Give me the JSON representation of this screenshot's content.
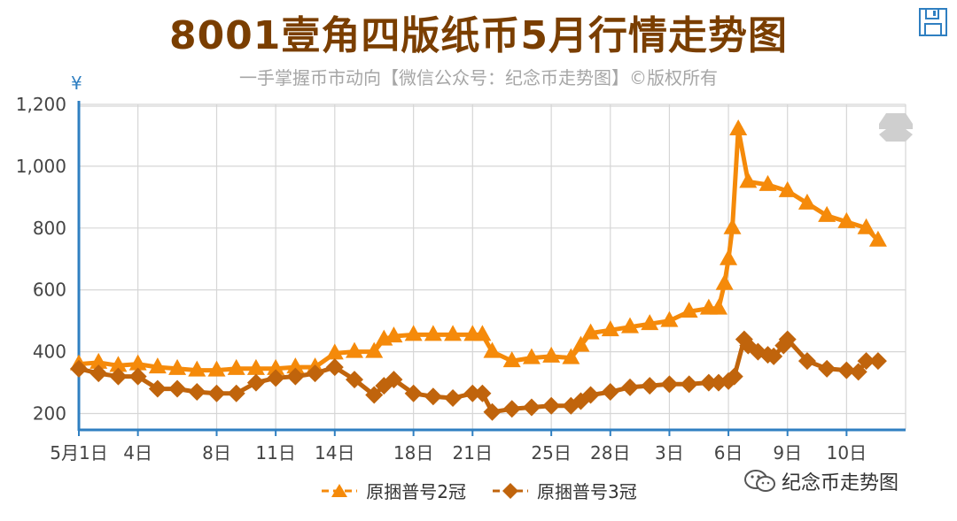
{
  "header": {
    "title": "8001壹角四版纸币5月行情走势图",
    "subtitle": "一手掌握币市动向【微信公众号：纪念币走势图】©版权所有"
  },
  "toolbar": {
    "save_icon": "save-icon"
  },
  "watermark": {
    "text": "纪念币走势图",
    "icon": "wechat-icon"
  },
  "colors": {
    "series1": "#f58a0a",
    "series2": "#c0640c",
    "axis": "#2f7fc1",
    "grid": "#d6d6d6",
    "title": "#7a3e00"
  },
  "chart_data": {
    "type": "line",
    "ylabel": "¥",
    "ylim": [
      150,
      1200
    ],
    "yticks": [
      200,
      400,
      600,
      800,
      1000,
      1200
    ],
    "ytick_labels": [
      "200",
      "400",
      "600",
      "800",
      "1,000",
      "1,200"
    ],
    "xlim": [
      0,
      42
    ],
    "xticks": [
      0,
      3,
      7,
      10,
      13,
      17,
      20,
      24,
      27,
      30,
      33,
      36,
      39
    ],
    "xtick_labels": [
      "5月1日",
      "4日",
      "8日",
      "11日",
      "14日",
      "18日",
      "21日",
      "25日",
      "28日",
      "3日",
      "6日",
      "9日",
      "10日"
    ],
    "grid": true,
    "legend_position": "bottom",
    "series": [
      {
        "name": "原捆普号2冠",
        "marker": "triangle",
        "x": [
          0,
          1,
          2,
          3,
          4,
          5,
          6,
          7,
          8,
          9,
          10,
          11,
          12,
          13,
          14,
          15,
          15.5,
          16,
          17,
          18,
          19,
          20,
          20.5,
          21,
          22,
          23,
          24,
          25,
          25.5,
          26,
          27,
          28,
          29,
          30,
          31,
          32,
          32.5,
          32.8,
          33,
          33.2,
          33.5,
          34,
          35,
          36,
          37,
          38,
          39,
          40,
          40.6
        ],
        "values": [
          360,
          365,
          355,
          360,
          350,
          345,
          340,
          340,
          345,
          345,
          345,
          350,
          350,
          395,
          400,
          400,
          440,
          450,
          455,
          455,
          455,
          455,
          455,
          400,
          370,
          380,
          385,
          380,
          420,
          460,
          470,
          480,
          490,
          500,
          530,
          540,
          540,
          620,
          700,
          800,
          1120,
          950,
          940,
          920,
          880,
          840,
          820,
          800,
          760
        ]
      },
      {
        "name": "原捆普号3冠",
        "marker": "diamond",
        "x": [
          0,
          1,
          2,
          3,
          4,
          5,
          6,
          7,
          8,
          9,
          10,
          11,
          12,
          13,
          14,
          15,
          15.5,
          16,
          17,
          18,
          19,
          20,
          20.5,
          21,
          22,
          23,
          24,
          25,
          25.5,
          26,
          27,
          28,
          29,
          30,
          31,
          32,
          32.5,
          33,
          33.3,
          33.8,
          34,
          34.5,
          35,
          35.3,
          35.8,
          36,
          37,
          38,
          39,
          39.6,
          40,
          40.6
        ],
        "values": [
          345,
          330,
          320,
          320,
          280,
          280,
          270,
          265,
          265,
          300,
          315,
          320,
          330,
          350,
          310,
          260,
          290,
          310,
          265,
          255,
          250,
          265,
          265,
          205,
          215,
          220,
          225,
          225,
          240,
          260,
          270,
          285,
          290,
          295,
          295,
          300,
          300,
          305,
          320,
          440,
          420,
          400,
          390,
          385,
          420,
          440,
          370,
          345,
          340,
          335,
          370,
          370
        ]
      }
    ]
  }
}
